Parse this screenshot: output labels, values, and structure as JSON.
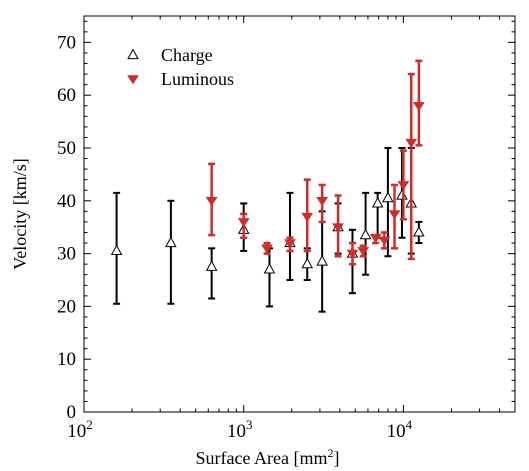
{
  "chart_data": {
    "type": "scatter",
    "title": "",
    "xlabel": "Surface Area [mm",
    "xlabel_sup": "2",
    "xlabel_end": "]",
    "ylabel": "Velocity [km/s]",
    "x_scale": "log",
    "xlim": [
      100,
      50000
    ],
    "ylim": [
      0,
      75
    ],
    "x_ticks": [
      {
        "value": 100,
        "base": "10",
        "exp": "2"
      },
      {
        "value": 1000,
        "base": "10",
        "exp": "3"
      },
      {
        "value": 10000,
        "base": "10",
        "exp": "4"
      }
    ],
    "y_ticks": [
      0,
      10,
      20,
      30,
      40,
      50,
      60,
      70
    ],
    "grid": false,
    "legend_position": "top-left",
    "series": [
      {
        "name": "Charge",
        "marker": "open-triangle-up",
        "color": "#000000",
        "points": [
          {
            "x": 160,
            "y": 30.5,
            "lo": 20.5,
            "hi": 41.5
          },
          {
            "x": 350,
            "y": 32.0,
            "lo": 20.5,
            "hi": 40.0
          },
          {
            "x": 630,
            "y": 27.5,
            "lo": 21.5,
            "hi": 31.0
          },
          {
            "x": 1000,
            "y": 34.5,
            "lo": 30.5,
            "hi": 39.5
          },
          {
            "x": 1450,
            "y": 27.0,
            "lo": 20.0,
            "hi": 31.0
          },
          {
            "x": 1950,
            "y": 32.0,
            "lo": 25.0,
            "hi": 41.5
          },
          {
            "x": 2500,
            "y": 28.0,
            "lo": 25.0,
            "hi": 31.0
          },
          {
            "x": 3100,
            "y": 28.5,
            "lo": 19.0,
            "hi": 38.0
          },
          {
            "x": 3900,
            "y": 35.0,
            "lo": 30.0,
            "hi": 39.5
          },
          {
            "x": 4800,
            "y": 30.0,
            "lo": 22.5,
            "hi": 34.5
          },
          {
            "x": 5800,
            "y": 33.5,
            "lo": 26.0,
            "hi": 41.5
          },
          {
            "x": 6900,
            "y": 39.5,
            "lo": 33.0,
            "hi": 41.5
          },
          {
            "x": 8000,
            "y": 40.5,
            "lo": 29.5,
            "hi": 50.0
          },
          {
            "x": 9800,
            "y": 41.0,
            "lo": 33.0,
            "hi": 50.0
          },
          {
            "x": 11200,
            "y": 39.5,
            "lo": 30.0,
            "hi": 50.0
          },
          {
            "x": 12500,
            "y": 34.0,
            "lo": 32.0,
            "hi": 36.0
          }
        ]
      },
      {
        "name": "Luminous",
        "marker": "filled-triangle-down",
        "color": "#d42a2a",
        "points": [
          {
            "x": 630,
            "y": 40.0,
            "lo": 33.5,
            "hi": 47.0
          },
          {
            "x": 1000,
            "y": 36.0,
            "lo": 33.0,
            "hi": 37.5
          },
          {
            "x": 1400,
            "y": 31.0,
            "lo": 30.0,
            "hi": 32.0
          },
          {
            "x": 1950,
            "y": 32.0,
            "lo": 30.5,
            "hi": 33.0
          },
          {
            "x": 2500,
            "y": 37.0,
            "lo": 30.5,
            "hi": 44.0
          },
          {
            "x": 3100,
            "y": 40.0,
            "lo": 36.0,
            "hi": 43.0
          },
          {
            "x": 3900,
            "y": 35.0,
            "lo": 29.5,
            "hi": 41.0
          },
          {
            "x": 4800,
            "y": 30.0,
            "lo": 28.0,
            "hi": 32.0
          },
          {
            "x": 5600,
            "y": 30.5,
            "lo": 29.5,
            "hi": 31.5
          },
          {
            "x": 6700,
            "y": 33.0,
            "lo": 32.0,
            "hi": 33.5
          },
          {
            "x": 7600,
            "y": 32.5,
            "lo": 31.0,
            "hi": 34.0
          },
          {
            "x": 8800,
            "y": 37.5,
            "lo": 31.0,
            "hi": 43.0
          },
          {
            "x": 10000,
            "y": 43.0,
            "lo": 36.5,
            "hi": 49.5
          },
          {
            "x": 11200,
            "y": 51.0,
            "lo": 29.0,
            "hi": 64.0
          },
          {
            "x": 12500,
            "y": 58.0,
            "lo": 50.5,
            "hi": 66.5
          }
        ]
      }
    ]
  }
}
